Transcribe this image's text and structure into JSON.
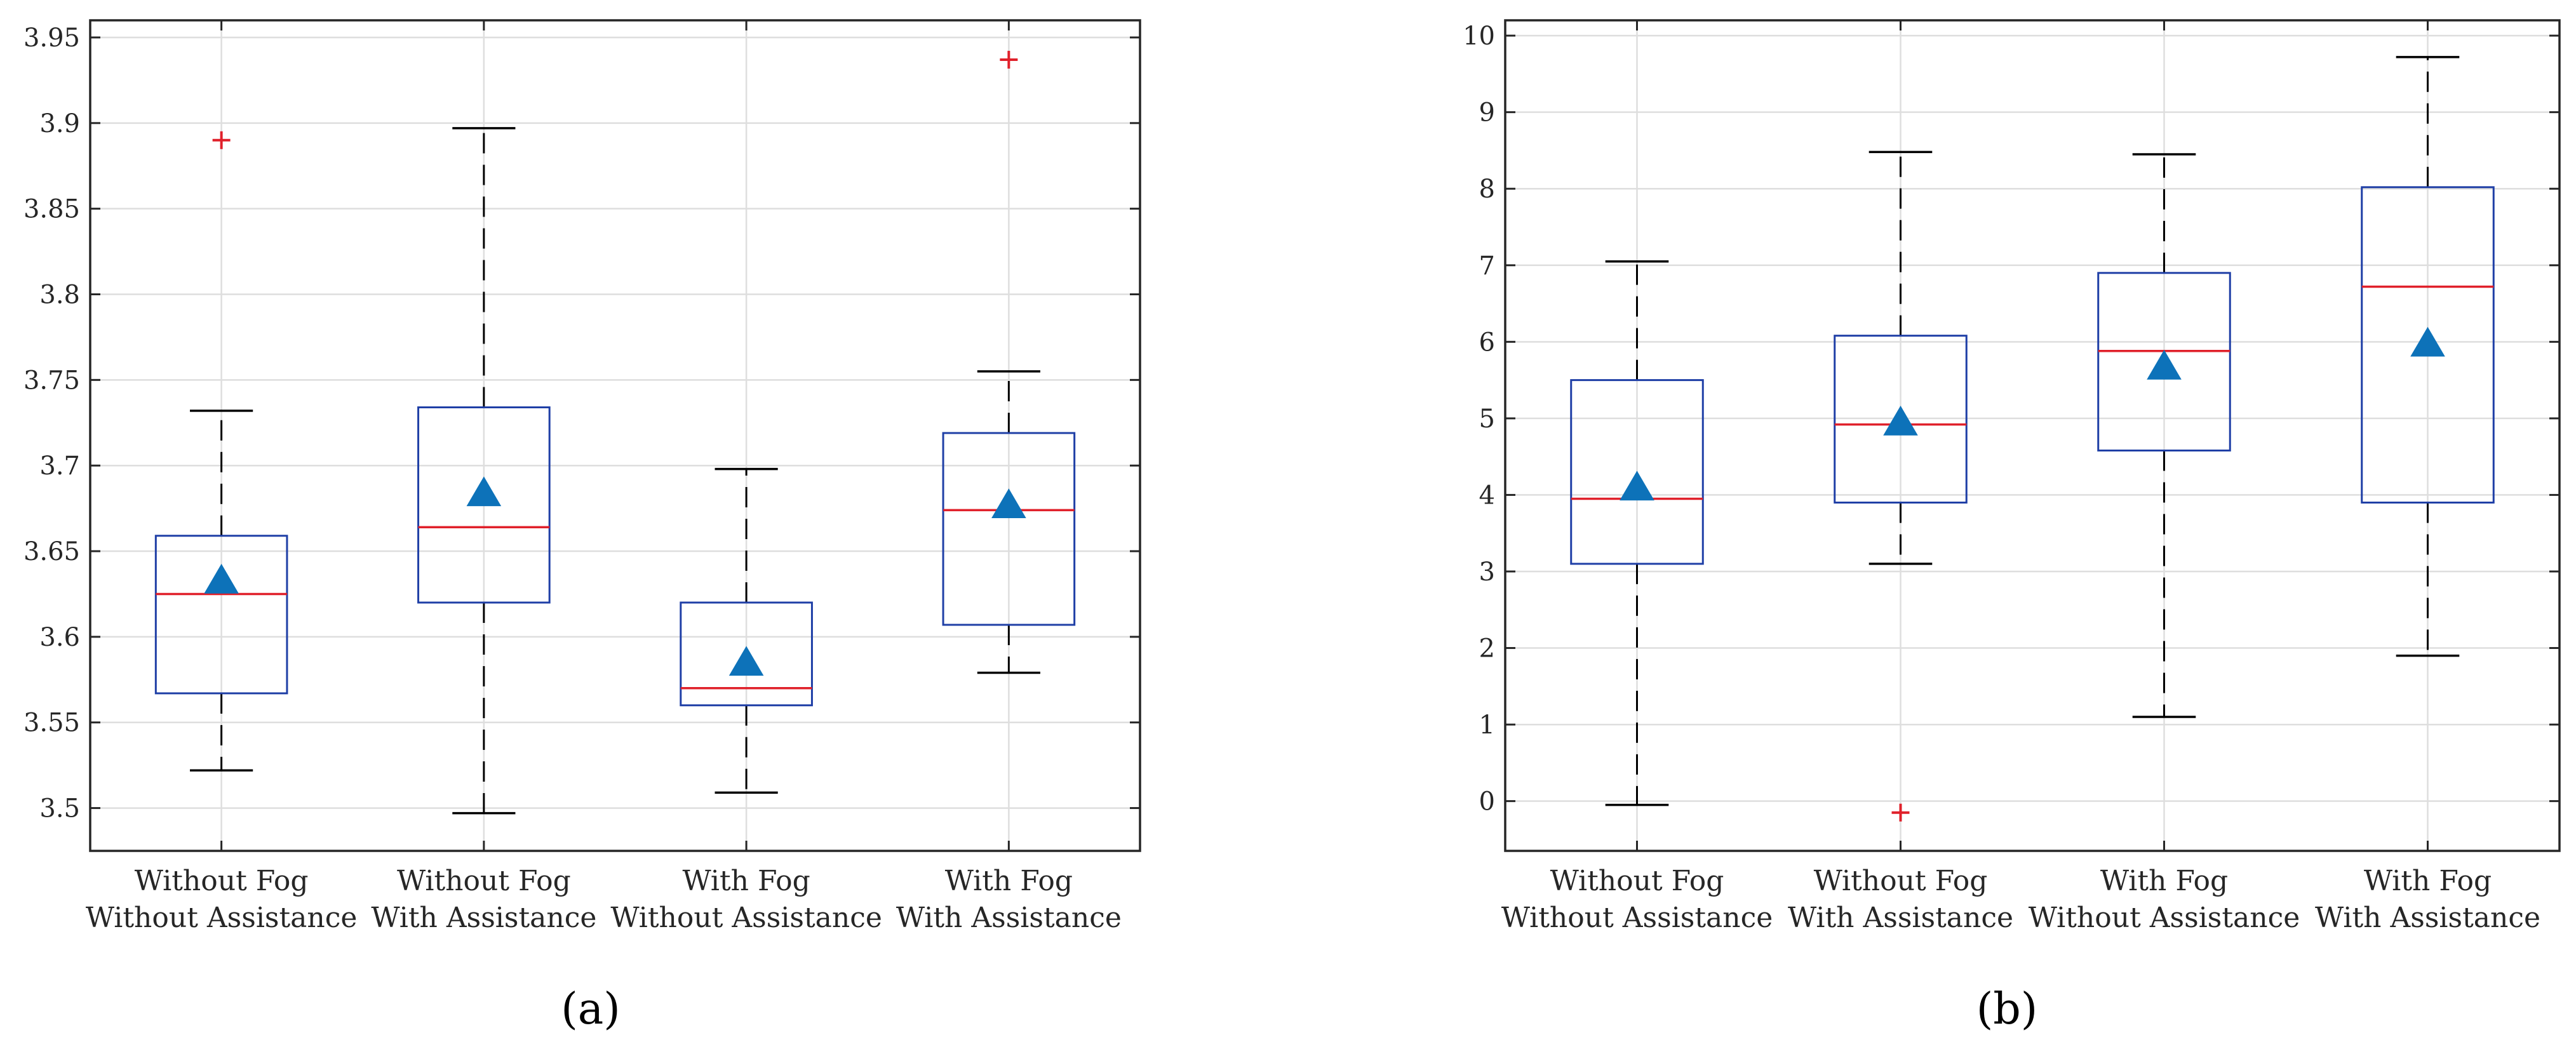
{
  "chart_data": [
    {
      "type": "box",
      "panel_label": "(a)",
      "categories": [
        [
          "Without Fog",
          "Without Assistance"
        ],
        [
          "Without Fog",
          "With Assistance"
        ],
        [
          "With Fog",
          "Without Assistance"
        ],
        [
          "With Fog",
          "With Assistance"
        ]
      ],
      "boxes": [
        {
          "whisker_low": 3.522,
          "q1": 3.567,
          "median": 3.625,
          "q3": 3.659,
          "whisker_high": 3.732,
          "mean": 3.633,
          "outliers": [
            3.89
          ]
        },
        {
          "whisker_low": 3.497,
          "q1": 3.62,
          "median": 3.664,
          "q3": 3.734,
          "whisker_high": 3.897,
          "mean": 3.684,
          "outliers": []
        },
        {
          "whisker_low": 3.509,
          "q1": 3.56,
          "median": 3.57,
          "q3": 3.62,
          "whisker_high": 3.698,
          "mean": 3.585,
          "outliers": []
        },
        {
          "whisker_low": 3.579,
          "q1": 3.607,
          "median": 3.674,
          "q3": 3.719,
          "whisker_high": 3.755,
          "mean": 3.677,
          "outliers": [
            3.937
          ]
        }
      ],
      "ylim": [
        3.475,
        3.96
      ],
      "yticks": [
        3.5,
        3.55,
        3.6,
        3.65,
        3.7,
        3.75,
        3.8,
        3.85,
        3.9,
        3.95
      ],
      "ytick_labels": [
        "3.5",
        "3.55",
        "3.6",
        "3.65",
        "3.7",
        "3.75",
        "3.8",
        "3.85",
        "3.9",
        "3.95"
      ],
      "grid": true
    },
    {
      "type": "box",
      "panel_label": "(b)",
      "categories": [
        [
          "Without Fog",
          "Without Assistance"
        ],
        [
          "Without Fog",
          "With Assistance"
        ],
        [
          "With Fog",
          "Without Assistance"
        ],
        [
          "With Fog",
          "With Assistance"
        ]
      ],
      "boxes": [
        {
          "whisker_low": -0.05,
          "q1": 3.1,
          "median": 3.95,
          "q3": 5.5,
          "whisker_high": 7.05,
          "mean": 4.1,
          "outliers": []
        },
        {
          "whisker_low": 3.1,
          "q1": 3.9,
          "median": 4.92,
          "q3": 6.08,
          "whisker_high": 8.48,
          "mean": 4.95,
          "outliers": [
            -0.15
          ]
        },
        {
          "whisker_low": 1.1,
          "q1": 4.58,
          "median": 5.88,
          "q3": 6.9,
          "whisker_high": 8.45,
          "mean": 5.68,
          "outliers": []
        },
        {
          "whisker_low": 1.9,
          "q1": 3.9,
          "median": 6.72,
          "q3": 8.02,
          "whisker_high": 9.72,
          "mean": 5.98,
          "outliers": []
        }
      ],
      "ylim": [
        -0.65,
        10.2
      ],
      "yticks": [
        0,
        1,
        2,
        3,
        4,
        5,
        6,
        7,
        8,
        9,
        10
      ],
      "ytick_labels": [
        "0",
        "1",
        "2",
        "3",
        "4",
        "5",
        "6",
        "7",
        "8",
        "9",
        "10"
      ],
      "grid": true
    }
  ],
  "style": {
    "box_color": "#1f3fa6",
    "median_color": "#e0202a",
    "mean_marker_color": "#0d72b9",
    "outlier_color": "#e0202a",
    "whisker_color": "#000000"
  }
}
